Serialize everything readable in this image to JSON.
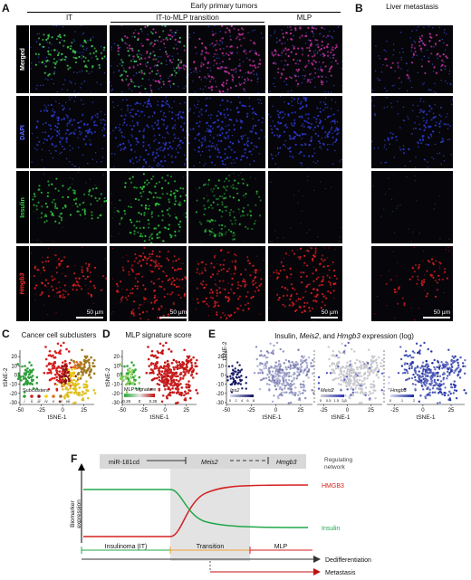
{
  "panels": {
    "A": {
      "letter": "A",
      "group_title": "Early primary tumors",
      "columns": [
        "IT",
        "IT-to-MLP transition",
        "MLP"
      ],
      "rows": [
        "Merged",
        "DAPI",
        "Insulin",
        "Hmgb3"
      ],
      "scale_bar": "50 µm"
    },
    "B": {
      "letter": "B",
      "title": "Liver metastasis",
      "scale_bar": "50 µm"
    },
    "C": {
      "letter": "C",
      "title": "Cancer cell subclusters"
    },
    "D": {
      "letter": "D",
      "title": "MLP signature score"
    },
    "E": {
      "letter": "E",
      "title": "Insulin, Meis2, and Hmgb3 expression (log)"
    },
    "F": {
      "letter": "F"
    }
  },
  "colors": {
    "dapi": "#2f3bd8",
    "insulin": "#2fc23a",
    "hmgb3": "#e02020",
    "merged": "#c0309a"
  },
  "chart_data": [
    {
      "type": "scatter",
      "panel": "C",
      "title": "Cancer cell subclusters",
      "xlabel": "tSNE-1",
      "ylabel": "tSNE-2",
      "xlim": [
        -50,
        37
      ],
      "ylim": [
        -32,
        27
      ],
      "xticks": [
        -50,
        -25,
        0,
        25
      ],
      "yticks": [
        20,
        10,
        0,
        -10,
        -20,
        -30
      ],
      "legend_title": "Subclusters",
      "legend": [
        "i",
        "ii",
        "iii",
        "iv",
        "v",
        "vi",
        "vii"
      ],
      "series": [
        {
          "name": "i",
          "color": "#2e9e3a",
          "center": [
            -42,
            -3
          ],
          "spread": [
            5,
            7
          ],
          "n": 60
        },
        {
          "name": "ii",
          "color": "#d62020",
          "center": [
            -4,
            8
          ],
          "spread": [
            8,
            12
          ],
          "n": 110
        },
        {
          "name": "iii",
          "color": "#8b1010",
          "center": [
            5,
            0
          ],
          "spread": [
            4,
            5
          ],
          "n": 35
        },
        {
          "name": "iv",
          "color": "#f5d000",
          "center": [
            12,
            2
          ],
          "spread": [
            2.5,
            2.5
          ],
          "n": 10
        },
        {
          "name": "v",
          "color": "#e07020",
          "center": [
            18,
            10
          ],
          "spread": [
            3,
            3
          ],
          "n": 18
        },
        {
          "name": "vi",
          "color": "#a07820",
          "center": [
            25,
            10
          ],
          "spread": [
            5,
            7
          ],
          "n": 60
        },
        {
          "name": "vii",
          "color": "#e0c020",
          "center": [
            15,
            -15
          ],
          "spread": [
            9,
            8
          ],
          "n": 80
        }
      ]
    },
    {
      "type": "scatter",
      "panel": "D",
      "title": "MLP signature score",
      "xlabel": "tSNE-1",
      "ylabel": "tSNE-2",
      "xlim": [
        -50,
        37
      ],
      "ylim": [
        -32,
        27
      ],
      "xticks": [
        -50,
        -25,
        0,
        25
      ],
      "yticks": [
        20,
        10,
        0,
        -10,
        -20,
        -30
      ],
      "colorbar_label": "MLP signature",
      "colorbar_ticks": [
        "-0.25",
        "0",
        "0.25"
      ],
      "colorbar_colors": [
        "#2ea83a",
        "#e8e8e8",
        "#c01010"
      ]
    },
    {
      "type": "scatter",
      "panel": "E",
      "xlabel": "tSNE-1",
      "ylabel": "tSNE-2",
      "subplots": [
        {
          "gene": "Ins2",
          "xticks": [
            -50,
            -25,
            0,
            25
          ],
          "colorbar_ticks": [
            "0",
            "2",
            "4",
            "6",
            "8"
          ],
          "cmap": [
            "#d8dcf2",
            "#0d1060"
          ]
        },
        {
          "gene": "Meis2",
          "xticks": [
            -25,
            0,
            25
          ],
          "colorbar_ticks": [
            "0",
            "0.5",
            "1.5",
            "2.5"
          ],
          "cmap": [
            "#d0d0d0",
            "#2a36b8"
          ]
        },
        {
          "gene": "Hmgb3",
          "xticks": [
            -25,
            0,
            25
          ],
          "colorbar_ticks": [
            "0",
            "1",
            "2"
          ],
          "cmap": [
            "#d8dcf2",
            "#1a2aa0"
          ]
        }
      ],
      "yticks": [
        20,
        10,
        0,
        -10,
        -20,
        -30
      ]
    },
    {
      "type": "line",
      "panel": "F",
      "ylabel": "Biomarker expression",
      "series": [
        {
          "name": "HMGB3",
          "color": "#d62020",
          "values": "low-then-rises"
        },
        {
          "name": "Insulin",
          "color": "#1fa84a",
          "values": "high-then-falls"
        }
      ],
      "network": {
        "items": [
          "miR-181cd",
          "Meis2",
          "Hmgb3"
        ],
        "right_label": "Regulating network"
      },
      "stages": [
        "Insulinoma (IT)",
        "Transition",
        "MLP"
      ],
      "arrows": [
        "Dedifferentiation",
        "Metastasis"
      ]
    }
  ]
}
